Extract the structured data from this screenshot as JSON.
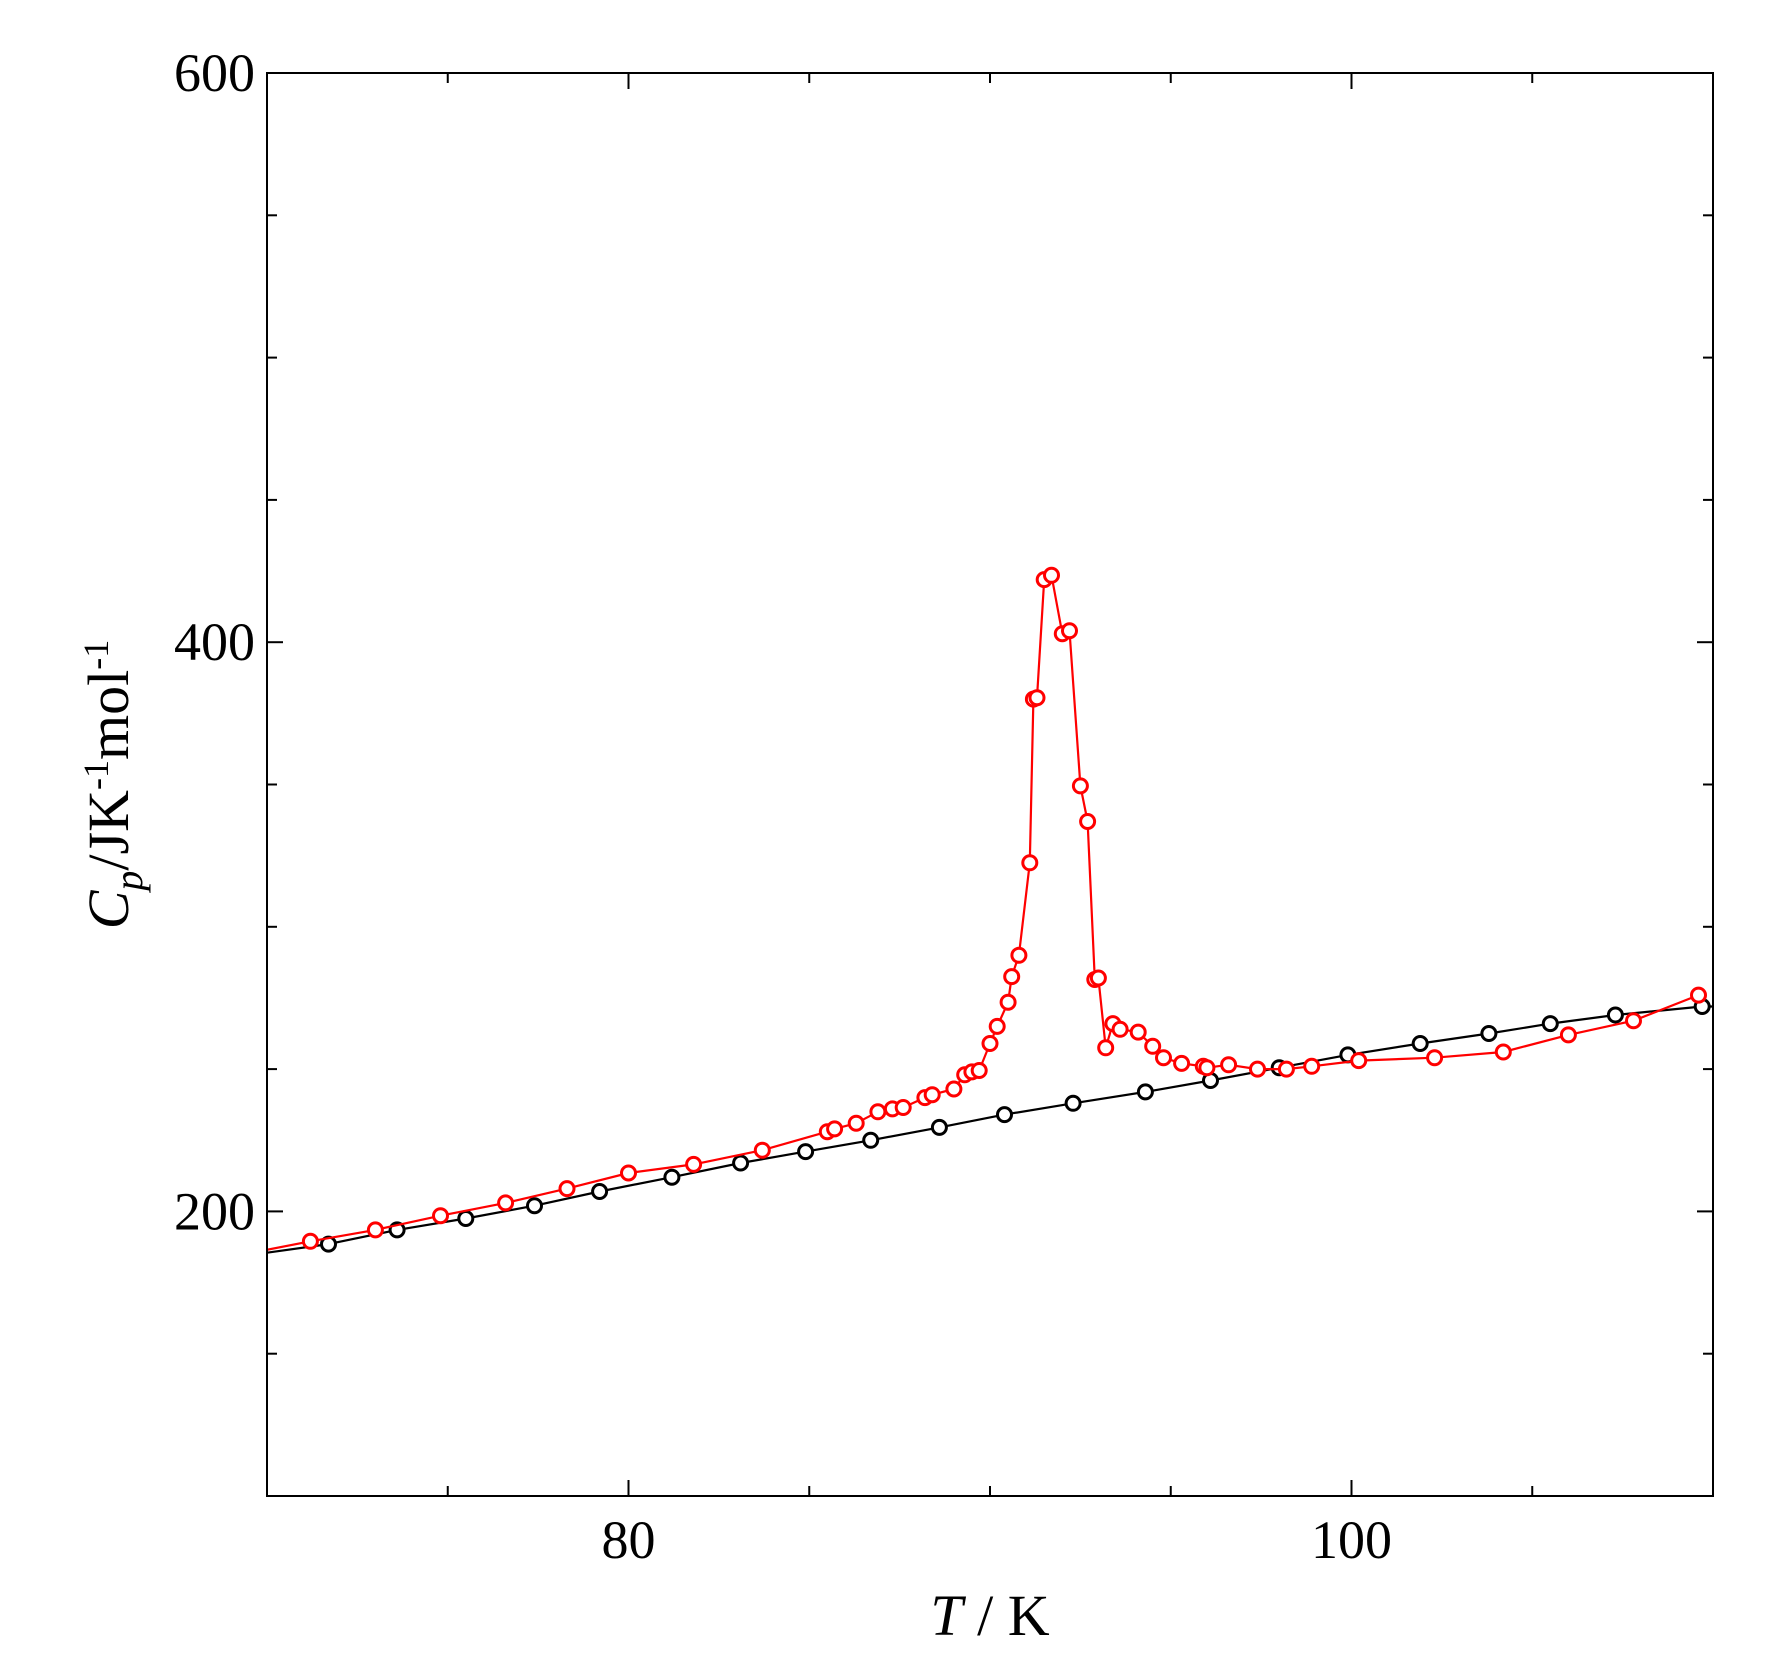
{
  "chart_data": {
    "type": "line",
    "xlim": [
      70,
      110
    ],
    "ylim": [
      100,
      600
    ],
    "x_ticks_major": [
      80,
      100
    ],
    "x_ticks_minor": [
      75,
      85,
      90,
      95,
      105
    ],
    "y_ticks_major": [
      200,
      400,
      600
    ],
    "y_ticks_minor": [
      150,
      250,
      300,
      350,
      450,
      500,
      550
    ],
    "xlabel": {
      "var": "T",
      "rest": " / K"
    },
    "ylabel": {
      "var": "C",
      "sub": "p",
      "rest": "/JK",
      "sup1": "-1",
      "mid": "mol",
      "sup2": "-1"
    },
    "grid": false,
    "legend": "none",
    "series": [
      {
        "color": "#000000",
        "marker": "open-circle",
        "line_from": [
          70,
          185.5
        ],
        "line_to": [
          110,
          272
        ],
        "x": [
          71.7,
          73.6,
          75.5,
          77.4,
          79.2,
          81.2,
          83.1,
          84.9,
          86.7,
          88.6,
          90.4,
          92.3,
          94.3,
          96.1,
          98.0,
          99.9,
          101.9,
          103.8,
          105.5,
          107.3,
          109.7
        ],
        "y": [
          188.5,
          193.5,
          197.5,
          202,
          207,
          212,
          217,
          221,
          225,
          229.5,
          234,
          238,
          242,
          246,
          250.5,
          255,
          259,
          262.5,
          266,
          269,
          272
        ]
      },
      {
        "color": "#ff0000",
        "marker": "open-circle",
        "line_from": [
          70,
          186.5
        ],
        "x": [
          71.2,
          73.0,
          74.8,
          76.6,
          78.3,
          80.0,
          81.8,
          83.7,
          85.5,
          85.7,
          86.3,
          86.9,
          87.3,
          87.6,
          88.2,
          88.4,
          89.0,
          89.3,
          89.5,
          89.7,
          90.0,
          90.2,
          90.5,
          90.6,
          90.8,
          91.1,
          91.2,
          91.3,
          91.5,
          91.7,
          92.0,
          92.2,
          92.5,
          92.7,
          92.9,
          93.0,
          93.2,
          93.4,
          93.6,
          94.1,
          94.5,
          94.8,
          95.3,
          95.9,
          96.0,
          96.6,
          97.4,
          98.2,
          98.9,
          100.2,
          102.3,
          104.2,
          106.0,
          107.8,
          109.6
        ],
        "y": [
          189.5,
          193.5,
          198.5,
          203,
          208,
          213.5,
          216.5,
          221.5,
          228,
          229,
          231,
          235,
          236,
          236.5,
          240,
          241,
          243,
          248,
          249,
          249.5,
          259,
          265,
          273.5,
          282.5,
          290,
          322.5,
          380,
          380.5,
          422,
          423.5,
          403,
          404,
          349.5,
          337,
          281.5,
          282,
          257.5,
          266,
          264,
          263,
          258,
          254,
          252,
          251,
          250.5,
          251.5,
          250,
          250,
          251,
          253,
          254,
          256,
          262,
          267,
          276
        ]
      }
    ]
  }
}
